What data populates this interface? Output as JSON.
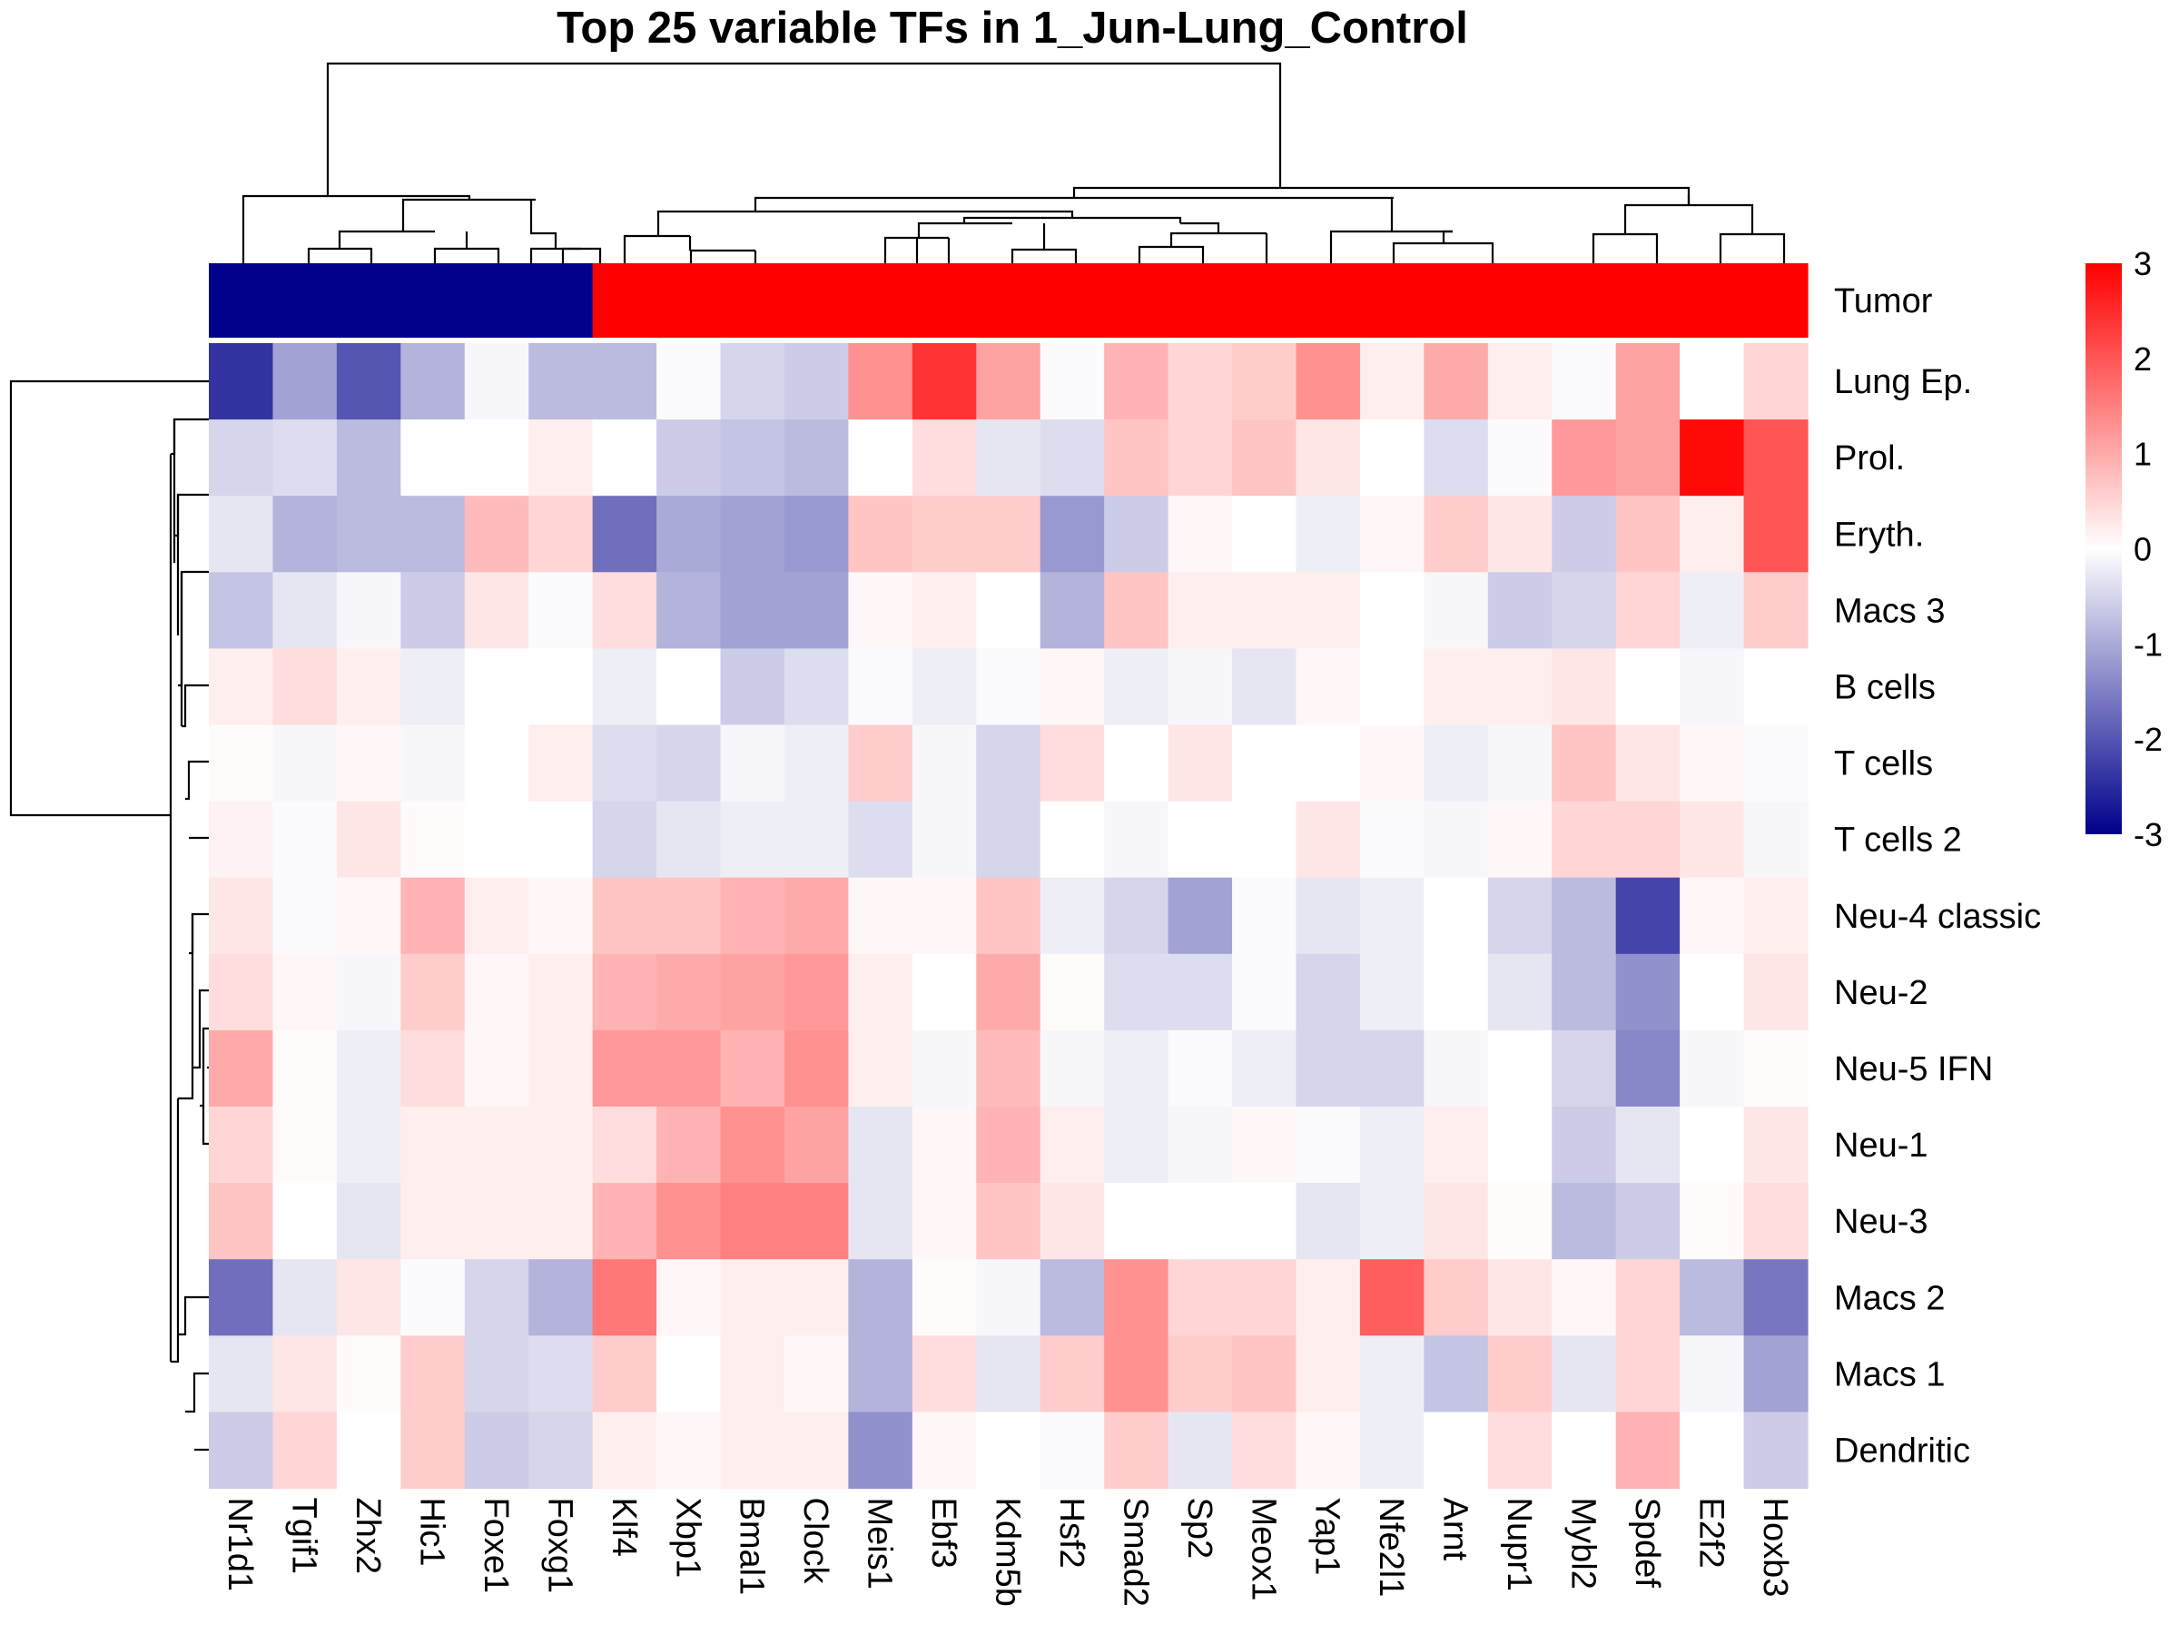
{
  "chart_data": {
    "type": "heatmap",
    "title": "Top 25 variable TFs in 1_Jun-Lung_Control",
    "columns": [
      "Nr1d1",
      "Tgif1",
      "Zhx2",
      "Hic1",
      "Foxe1",
      "Foxg1",
      "Klf4",
      "Xbp1",
      "Bmal1",
      "Clock",
      "Meis1",
      "Ebf3",
      "Kdm5b",
      "Hsf2",
      "Smad2",
      "Sp2",
      "Meox1",
      "Yap1",
      "Nfe2l1",
      "Arnt",
      "Nupr1",
      "Mybl2",
      "Spdef",
      "E2f2",
      "Hoxb3"
    ],
    "rows": [
      "Lung Ep.",
      "Prol.",
      "Eryth.",
      "Macs 3",
      "B cells",
      "T cells",
      "T cells 2",
      "Neu-4 classic",
      "Neu-2",
      "Neu-5 IFN",
      "Neu-1",
      "Neu-3",
      "Macs 2",
      "Macs 1",
      "Dendritic"
    ],
    "annotation": {
      "name": "Tumor",
      "values": [
        -3,
        -3,
        -3,
        -3,
        -3,
        -3,
        3,
        3,
        3,
        3,
        3,
        3,
        3,
        3,
        3,
        3,
        3,
        3,
        3,
        3,
        3,
        3,
        3,
        3,
        3
      ]
    },
    "values": [
      [
        -2.4,
        -1.1,
        -2.0,
        -0.9,
        -0.1,
        -0.8,
        -0.8,
        -0.05,
        -0.5,
        -0.6,
        1.3,
        2.4,
        1.1,
        -0.05,
        0.9,
        0.5,
        0.6,
        1.3,
        0.2,
        1.0,
        0.2,
        -0.05,
        1.1,
        0.0,
        0.5
      ],
      [
        -0.5,
        -0.4,
        -0.8,
        0.0,
        0.0,
        0.2,
        0.0,
        -0.6,
        -0.7,
        -0.8,
        0.0,
        0.4,
        -0.3,
        -0.4,
        0.7,
        0.5,
        0.7,
        0.3,
        0.0,
        -0.4,
        -0.05,
        1.2,
        1.1,
        2.9,
        2.0
      ],
      [
        -0.3,
        -0.9,
        -0.8,
        -0.8,
        0.8,
        0.5,
        -1.7,
        -1.0,
        -1.1,
        -1.2,
        0.7,
        0.6,
        0.6,
        -1.2,
        -0.6,
        0.1,
        0.0,
        -0.2,
        0.1,
        0.6,
        0.3,
        -0.6,
        0.7,
        0.2,
        2.0
      ],
      [
        -0.7,
        -0.3,
        -0.1,
        -0.6,
        0.3,
        -0.05,
        0.4,
        -0.9,
        -1.1,
        -1.1,
        0.1,
        0.2,
        0.0,
        -0.9,
        0.7,
        0.2,
        0.2,
        0.2,
        0.0,
        -0.1,
        -0.6,
        -0.5,
        0.5,
        -0.2,
        0.6
      ],
      [
        0.2,
        0.4,
        0.2,
        -0.2,
        0.0,
        0.0,
        -0.2,
        0.0,
        -0.6,
        -0.4,
        -0.05,
        -0.2,
        -0.05,
        0.1,
        -0.2,
        -0.1,
        -0.3,
        0.1,
        0.0,
        0.2,
        0.2,
        0.3,
        0.0,
        -0.1,
        0.0
      ],
      [
        0.05,
        -0.1,
        0.1,
        -0.1,
        0.0,
        0.2,
        -0.4,
        -0.5,
        -0.1,
        -0.2,
        0.6,
        -0.1,
        -0.5,
        0.4,
        0.0,
        0.3,
        0.0,
        0.0,
        0.1,
        -0.2,
        -0.1,
        0.7,
        0.3,
        0.1,
        -0.05
      ],
      [
        0.15,
        -0.05,
        0.3,
        0.05,
        0.0,
        0.0,
        -0.5,
        -0.3,
        -0.2,
        -0.2,
        -0.4,
        -0.1,
        -0.5,
        0.0,
        -0.1,
        0.0,
        0.0,
        0.3,
        -0.05,
        -0.1,
        0.1,
        0.5,
        0.5,
        0.3,
        -0.1
      ],
      [
        0.3,
        -0.05,
        0.1,
        0.9,
        0.2,
        0.1,
        0.7,
        0.7,
        0.9,
        1.0,
        0.1,
        0.1,
        0.7,
        -0.2,
        -0.5,
        -1.1,
        -0.05,
        -0.3,
        -0.2,
        0.0,
        -0.5,
        -0.8,
        -2.2,
        0.1,
        0.2
      ],
      [
        0.4,
        0.1,
        -0.1,
        0.6,
        0.1,
        0.2,
        0.9,
        1.0,
        1.1,
        1.2,
        0.2,
        0.0,
        1.0,
        0.05,
        -0.4,
        -0.4,
        -0.05,
        -0.5,
        -0.2,
        0.0,
        -0.3,
        -0.8,
        -1.3,
        0.0,
        0.3
      ],
      [
        1.0,
        0.05,
        -0.2,
        0.4,
        0.1,
        0.2,
        1.2,
        1.2,
        0.9,
        1.3,
        0.2,
        -0.1,
        0.8,
        -0.1,
        -0.2,
        -0.05,
        -0.2,
        -0.5,
        -0.5,
        -0.1,
        0.0,
        -0.5,
        -1.4,
        -0.1,
        0.05
      ],
      [
        0.5,
        0.05,
        -0.2,
        0.2,
        0.2,
        0.2,
        0.4,
        0.9,
        1.3,
        1.1,
        -0.3,
        0.1,
        0.9,
        0.2,
        -0.2,
        -0.1,
        0.1,
        -0.05,
        -0.2,
        0.2,
        0.0,
        -0.6,
        -0.3,
        0.0,
        0.3
      ],
      [
        0.7,
        0.0,
        -0.3,
        0.2,
        0.2,
        0.2,
        0.9,
        1.3,
        1.5,
        1.5,
        -0.3,
        0.1,
        0.7,
        0.3,
        0.0,
        0.0,
        0.0,
        -0.3,
        -0.2,
        0.3,
        0.05,
        -0.8,
        -0.6,
        0.05,
        0.4
      ],
      [
        -1.7,
        -0.3,
        0.3,
        -0.05,
        -0.5,
        -0.9,
        1.6,
        0.1,
        0.2,
        0.2,
        -0.9,
        0.05,
        -0.1,
        -0.8,
        1.3,
        0.5,
        0.5,
        0.2,
        1.9,
        0.6,
        0.3,
        0.1,
        0.5,
        -0.8,
        -1.6
      ],
      [
        -0.3,
        0.3,
        0.05,
        0.6,
        -0.5,
        -0.4,
        0.6,
        0.0,
        0.2,
        0.1,
        -0.9,
        0.4,
        -0.3,
        0.6,
        1.3,
        0.6,
        0.7,
        0.2,
        -0.2,
        -0.7,
        0.6,
        -0.3,
        0.5,
        -0.1,
        -1.1
      ],
      [
        -0.6,
        0.5,
        0.0,
        0.6,
        -0.6,
        -0.5,
        0.2,
        0.1,
        0.2,
        0.2,
        -1.3,
        0.1,
        0.0,
        -0.05,
        0.6,
        -0.3,
        0.4,
        0.1,
        -0.2,
        0.0,
        0.4,
        0.0,
        0.9,
        0.0,
        -0.6
      ]
    ],
    "color_scale": {
      "min": -3,
      "mid": 0,
      "max": 3,
      "low_color": "#00008b",
      "mid_color": "#ffffff",
      "high_color": "#ff0000",
      "ticks": [
        3,
        2,
        1,
        0,
        -1,
        -2,
        -3
      ]
    }
  }
}
